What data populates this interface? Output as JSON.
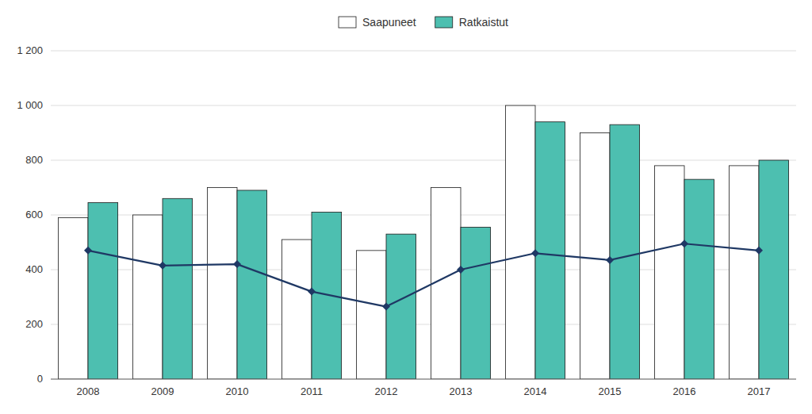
{
  "chart_data": {
    "type": "bar",
    "categories": [
      "2008",
      "2009",
      "2010",
      "2011",
      "2012",
      "2013",
      "2014",
      "2015",
      "2016",
      "2017"
    ],
    "series": [
      {
        "name": "Saapuneet",
        "color": "#ffffff",
        "values": [
          590,
          600,
          700,
          510,
          470,
          700,
          1000,
          900,
          780,
          780
        ]
      },
      {
        "name": "Ratkaistut",
        "color": "#4dbfb0",
        "values": [
          645,
          660,
          690,
          610,
          530,
          555,
          940,
          930,
          730,
          800
        ]
      },
      {
        "type": "line",
        "color": "#1f3864",
        "marker": "diamond",
        "values": [
          470,
          415,
          420,
          320,
          265,
          400,
          460,
          435,
          495,
          470
        ]
      }
    ],
    "ylim": [
      0,
      1200
    ],
    "yticks": [
      0,
      200,
      400,
      600,
      800,
      {
        "value": 1000,
        "label": "1 000"
      },
      {
        "value": 1200,
        "label": "1 200"
      }
    ],
    "grid": true,
    "legend": "top"
  }
}
